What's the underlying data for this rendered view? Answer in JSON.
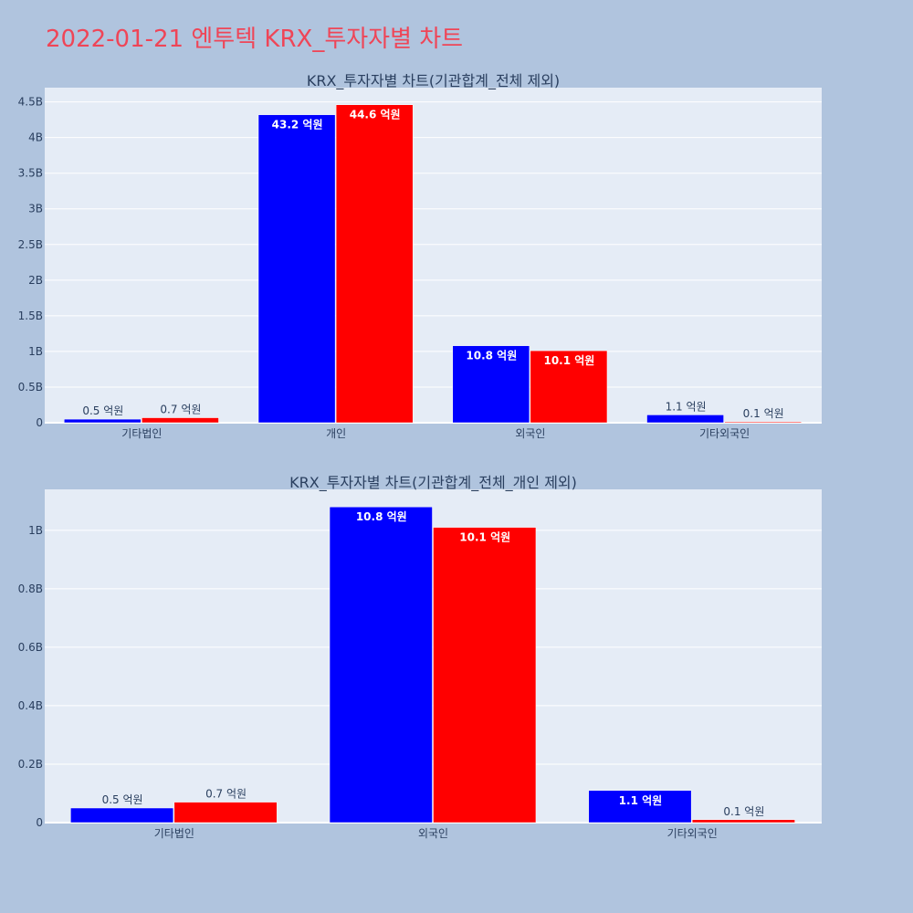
{
  "page_title": "2022-01-21 엔투텍 KRX_투자자별 차트",
  "colors": {
    "series_a": "#0000ff",
    "series_b": "#ff0000",
    "plot_bg": "#e5ecf6",
    "page_bg": "#b0c4de"
  },
  "chart_data": [
    {
      "type": "bar",
      "title": "KRX_투자자별 차트(기관합계_전체 제외)",
      "categories": [
        "기타법인",
        "개인",
        "외국인",
        "기타외국인"
      ],
      "series": [
        {
          "values": [
            50000000,
            4320000000,
            1080000000,
            110000000
          ],
          "labels": [
            "0.5 억원",
            "43.2 억원",
            "10.8 억원",
            "1.1 억원"
          ]
        },
        {
          "values": [
            70000000,
            4460000000,
            1010000000,
            10000000
          ],
          "labels": [
            "0.7 억원",
            "44.6 억원",
            "10.1 억원",
            "0.1 억원"
          ]
        }
      ],
      "ylim": [
        0,
        4700000000
      ],
      "yticks": [
        0,
        500000000,
        1000000000,
        1500000000,
        2000000000,
        2500000000,
        3000000000,
        3500000000,
        4000000000,
        4500000000
      ],
      "yticklabels": [
        "0",
        "0.5B",
        "1B",
        "1.5B",
        "2B",
        "2.5B",
        "3B",
        "3.5B",
        "4B",
        "4.5B"
      ],
      "grid": true
    },
    {
      "type": "bar",
      "title": "KRX_투자자별 차트(기관합계_전체_개인 제외)",
      "categories": [
        "기타법인",
        "외국인",
        "기타외국인"
      ],
      "series": [
        {
          "values": [
            50000000,
            1080000000,
            110000000
          ],
          "labels": [
            "0.5 억원",
            "10.8 억원",
            "1.1 억원"
          ]
        },
        {
          "values": [
            70000000,
            1010000000,
            10000000
          ],
          "labels": [
            "0.7 억원",
            "10.1 억원",
            "0.1 억원"
          ]
        }
      ],
      "ylim": [
        0,
        1140000000
      ],
      "yticks": [
        0,
        200000000,
        400000000,
        600000000,
        800000000,
        1000000000
      ],
      "yticklabels": [
        "0",
        "0.2B",
        "0.4B",
        "0.6B",
        "0.8B",
        "1B"
      ],
      "grid": true
    }
  ]
}
